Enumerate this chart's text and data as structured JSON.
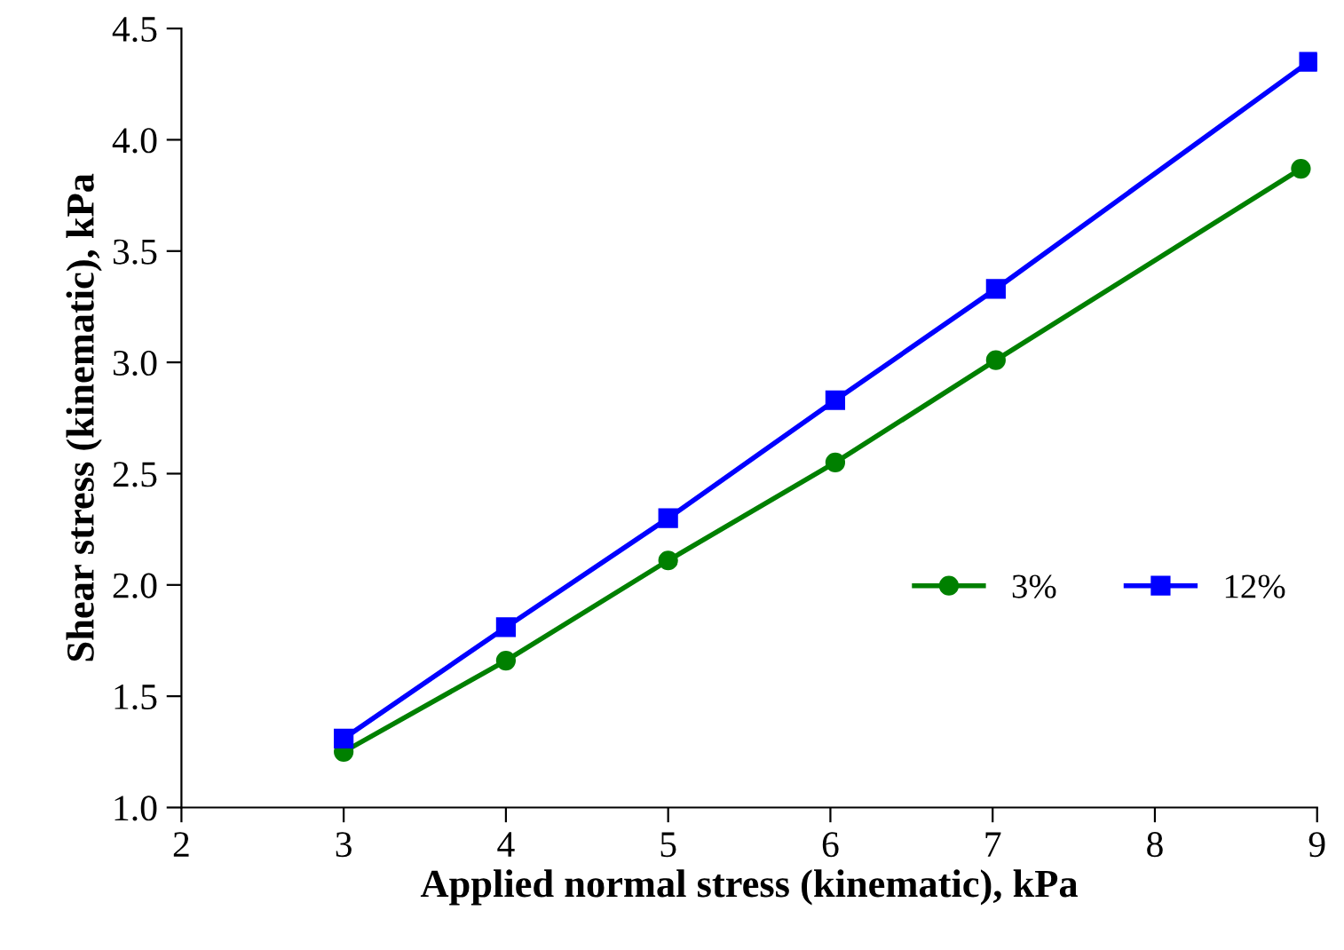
{
  "chart_data": {
    "type": "line",
    "xlabel": "Applied normal stress (kinematic), kPa",
    "ylabel": "Shear stress (kinematic), kPa",
    "series": [
      {
        "name": "3%",
        "color": "#008000",
        "marker": "circle",
        "x": [
          3,
          4,
          5,
          6.03,
          7.02,
          8.9
        ],
        "values": [
          1.25,
          1.66,
          2.11,
          2.55,
          3.01,
          3.87
        ]
      },
      {
        "name": "12%",
        "color": "#0000ff",
        "marker": "square",
        "x": [
          3,
          4,
          5,
          6.03,
          7.02,
          8.95
        ],
        "values": [
          1.31,
          1.81,
          2.3,
          2.83,
          3.33,
          4.35
        ]
      }
    ],
    "xlim": [
      2,
      9
    ],
    "xticks": [
      2,
      3,
      4,
      5,
      6,
      7,
      8,
      9
    ],
    "ylim": [
      1.0,
      4.5
    ],
    "yticks": [
      {
        "value": 1.0,
        "label": "1.0"
      },
      {
        "value": 1.5,
        "label": "1.5"
      },
      {
        "value": 2.0,
        "label": "2.0"
      },
      {
        "value": 2.5,
        "label": "2.5"
      },
      {
        "value": 3.0,
        "label": "3.0"
      },
      {
        "value": 3.5,
        "label": "3.5"
      },
      {
        "value": 4.0,
        "label": "4.0"
      },
      {
        "value": 4.5,
        "label": "4.5"
      }
    ],
    "grid": false,
    "legend": "center right",
    "line_style": "solid"
  }
}
